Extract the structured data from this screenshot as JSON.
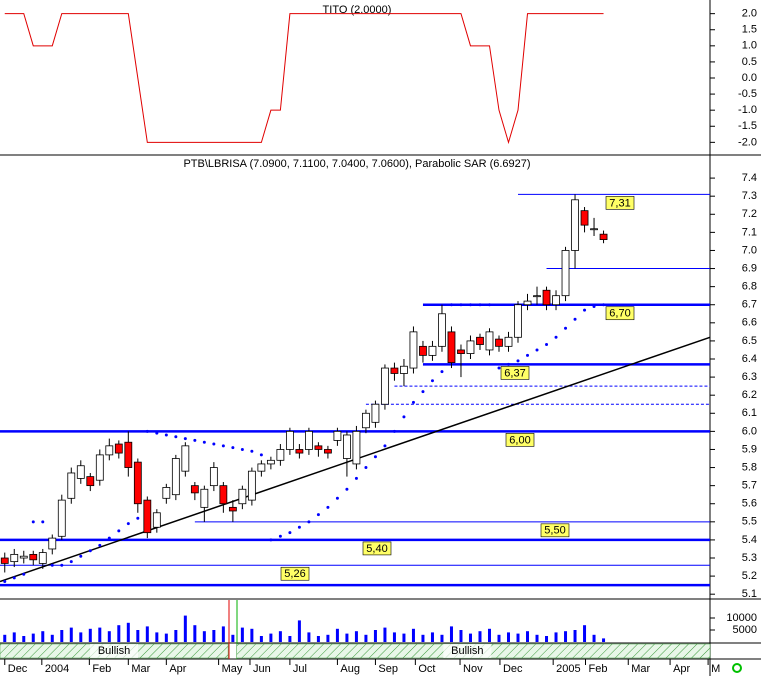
{
  "chart_data": [
    {
      "type": "line",
      "title": "TITO (2.0000)",
      "x": [
        0,
        1,
        2,
        3,
        4,
        5,
        6,
        7,
        8,
        9,
        10,
        11,
        12,
        13,
        14,
        15,
        16,
        17,
        18,
        19,
        20,
        21,
        22,
        23,
        24,
        25,
        26,
        27,
        28,
        29,
        30,
        31,
        32,
        33,
        34,
        35,
        36,
        37,
        38,
        39,
        40,
        41,
        42,
        43,
        44,
        45,
        46,
        47,
        48,
        49,
        50,
        51,
        52,
        53,
        54,
        55,
        56,
        57,
        58,
        59,
        60,
        61,
        62,
        63
      ],
      "series": [
        {
          "name": "TITO",
          "color": "#e00000",
          "values": [
            2,
            2,
            2,
            1,
            1,
            1,
            2,
            2,
            2,
            2,
            2,
            2,
            2,
            2,
            0,
            -2,
            -2,
            -2,
            -2,
            -2,
            -2,
            -2,
            -2,
            -2,
            -2,
            -2,
            -2,
            -2,
            -1,
            -1,
            2,
            2,
            2,
            2,
            2,
            2,
            2,
            2,
            2,
            2,
            2,
            2,
            2,
            2,
            2,
            2,
            2,
            2,
            2,
            1,
            1,
            1,
            -1,
            -2,
            -1,
            2,
            2,
            2,
            2,
            2,
            2,
            2,
            2,
            2
          ]
        }
      ],
      "xlim": [
        -0.5,
        74.2
      ],
      "ylim": [
        -2.3,
        2.3
      ],
      "yticks": [
        {
          "value": 2,
          "label": "2.0"
        },
        {
          "value": 1.5,
          "label": "1.5"
        },
        {
          "value": 1,
          "label": "1.0"
        },
        {
          "value": 0.5,
          "label": "0.5"
        },
        {
          "value": 0,
          "label": "0.0"
        },
        {
          "value": -0.5,
          "label": "-0.5"
        },
        {
          "value": -1,
          "label": "-1.0"
        },
        {
          "value": -1.5,
          "label": "-1.5"
        },
        {
          "value": -2,
          "label": "-2.0"
        }
      ]
    },
    {
      "type": "candlestick",
      "title": "PTB\\LBRISA (7.0900, 7.1100, 7.0400, 7.0600), Parabolic SAR (6.6927)",
      "x": [
        0,
        1,
        2,
        3,
        4,
        5,
        6,
        7,
        8,
        9,
        10,
        11,
        12,
        13,
        14,
        15,
        16,
        17,
        18,
        19,
        20,
        21,
        22,
        23,
        24,
        25,
        26,
        27,
        28,
        29,
        30,
        31,
        32,
        33,
        34,
        35,
        36,
        37,
        38,
        39,
        40,
        41,
        42,
        43,
        44,
        45,
        46,
        47,
        48,
        49,
        50,
        51,
        52,
        53,
        54,
        55,
        56,
        57,
        58,
        59,
        60,
        61,
        62,
        63
      ],
      "open": [
        5.3,
        5.28,
        5.3,
        5.32,
        5.27,
        5.35,
        5.42,
        5.63,
        5.74,
        5.75,
        5.73,
        5.87,
        5.93,
        5.94,
        5.83,
        5.62,
        5.47,
        5.63,
        5.65,
        5.78,
        5.7,
        5.58,
        5.7,
        5.7,
        5.58,
        5.6,
        5.62,
        5.78,
        5.82,
        5.84,
        5.9,
        5.9,
        5.9,
        5.92,
        5.9,
        5.95,
        5.85,
        5.82,
        6.02,
        6.05,
        6.15,
        6.35,
        6.32,
        6.35,
        6.47,
        6.42,
        6.47,
        6.55,
        6.45,
        6.43,
        6.52,
        6.45,
        6.51,
        6.47,
        6.52,
        6.7,
        6.75,
        6.78,
        6.7,
        6.75,
        7.0,
        7.22,
        7.12,
        7.09
      ],
      "high": [
        5.33,
        5.35,
        5.34,
        5.34,
        5.35,
        5.43,
        5.65,
        5.8,
        5.84,
        5.77,
        5.9,
        5.96,
        5.95,
        6.0,
        5.85,
        5.64,
        5.57,
        5.71,
        5.87,
        5.94,
        5.72,
        5.7,
        5.83,
        5.72,
        5.62,
        5.7,
        5.8,
        5.84,
        5.86,
        5.93,
        6.02,
        5.93,
        6.02,
        5.94,
        5.92,
        6.02,
        6.0,
        6.03,
        6.12,
        6.17,
        6.37,
        6.38,
        6.4,
        6.58,
        6.5,
        6.5,
        6.7,
        6.58,
        6.48,
        6.53,
        6.54,
        6.57,
        6.53,
        6.55,
        6.72,
        6.76,
        6.8,
        6.8,
        6.78,
        7.02,
        7.31,
        7.24,
        7.18,
        7.11
      ],
      "low": [
        5.22,
        5.25,
        5.27,
        5.26,
        5.24,
        5.32,
        5.4,
        5.6,
        5.71,
        5.67,
        5.7,
        5.84,
        5.85,
        5.75,
        5.55,
        5.41,
        5.44,
        5.6,
        5.62,
        5.75,
        5.62,
        5.5,
        5.67,
        5.55,
        5.5,
        5.57,
        5.59,
        5.75,
        5.79,
        5.81,
        5.87,
        5.85,
        5.87,
        5.86,
        5.85,
        5.92,
        5.75,
        5.79,
        5.99,
        6.02,
        6.12,
        6.28,
        6.25,
        6.32,
        6.38,
        6.39,
        6.44,
        6.35,
        6.3,
        6.4,
        6.45,
        6.42,
        6.44,
        6.44,
        6.49,
        6.67,
        6.7,
        6.67,
        6.67,
        6.72,
        6.9,
        7.1,
        7.08,
        7.04
      ],
      "close": [
        5.27,
        5.32,
        5.31,
        5.29,
        5.33,
        5.41,
        5.62,
        5.77,
        5.81,
        5.7,
        5.87,
        5.92,
        5.88,
        5.8,
        5.6,
        5.44,
        5.55,
        5.69,
        5.85,
        5.92,
        5.66,
        5.68,
        5.8,
        5.6,
        5.56,
        5.68,
        5.78,
        5.82,
        5.84,
        5.9,
        6.0,
        5.88,
        6.0,
        5.9,
        5.88,
        6.0,
        5.98,
        6.0,
        6.1,
        6.15,
        6.35,
        6.32,
        6.36,
        6.55,
        6.42,
        6.47,
        6.65,
        6.38,
        6.43,
        6.5,
        6.48,
        6.55,
        6.47,
        6.52,
        6.7,
        6.72,
        6.75,
        6.7,
        6.75,
        7.0,
        7.28,
        7.14,
        7.12,
        7.06
      ],
      "sar": [
        5.17,
        5.19,
        5.21,
        5.5,
        5.5,
        5.26,
        5.26,
        5.28,
        5.31,
        5.34,
        5.37,
        5.41,
        5.45,
        5.49,
        5.52,
        6.0,
        5.99,
        5.98,
        5.97,
        5.96,
        5.95,
        5.94,
        5.93,
        5.92,
        5.91,
        5.9,
        5.89,
        5.87,
        5.4,
        5.42,
        5.44,
        5.47,
        5.5,
        5.54,
        5.58,
        5.63,
        5.68,
        5.74,
        5.8,
        5.86,
        5.92,
        6.0,
        6.08,
        6.16,
        6.22,
        6.28,
        6.33,
        6.7,
        6.7,
        6.7,
        6.7,
        6.7,
        6.35,
        6.37,
        6.39,
        6.42,
        6.45,
        6.48,
        6.52,
        6.57,
        6.62,
        6.67,
        6.69,
        6.7
      ],
      "up_color": "#ffffff",
      "down_color": "#ff0000",
      "sar_color": "#0000ff",
      "levels": [
        {
          "value": 7.31,
          "label": "7,31",
          "style": "thin"
        },
        {
          "value": 6.9,
          "style": "thin"
        },
        {
          "value": 6.7,
          "label": "6,70",
          "style": "thick"
        },
        {
          "value": 6.37,
          "label": "6,37",
          "style": "thick"
        },
        {
          "value": 6.25,
          "style": "dashed"
        },
        {
          "value": 6.15,
          "style": "dashed"
        },
        {
          "value": 6,
          "label": "6,00",
          "style": "thick"
        },
        {
          "value": 5.5,
          "label": "5,50",
          "style": "thin"
        },
        {
          "value": 5.4,
          "label": "5,40",
          "style": "thick"
        },
        {
          "value": 5.26,
          "label": "5,26",
          "style": "thin"
        },
        {
          "value": 5.15,
          "style": "thick"
        }
      ],
      "trendline": {
        "x": [
          -0.5,
          74.2
        ],
        "values": [
          5.17,
          6.52
        ]
      },
      "xlim": [
        -0.5,
        74.2
      ],
      "ylim": [
        5.09,
        7.5
      ],
      "yticks": [
        5.1,
        5.2,
        5.3,
        5.4,
        5.5,
        5.6,
        5.7,
        5.8,
        5.9,
        {
          "value": 6,
          "label": "6.0"
        },
        6.1,
        6.2,
        6.3,
        6.4,
        6.5,
        6.6,
        6.7,
        6.8,
        6.9,
        {
          "value": 7,
          "label": "7.0"
        },
        7.1,
        7.2,
        7.3,
        7.4
      ]
    },
    {
      "type": "bar",
      "x": [
        0,
        1,
        2,
        3,
        4,
        5,
        6,
        7,
        8,
        9,
        10,
        11,
        12,
        13,
        14,
        15,
        16,
        17,
        18,
        19,
        20,
        21,
        22,
        23,
        24,
        25,
        26,
        27,
        28,
        29,
        30,
        31,
        32,
        33,
        34,
        35,
        36,
        37,
        38,
        39,
        40,
        41,
        42,
        43,
        44,
        45,
        46,
        47,
        48,
        49,
        50,
        51,
        52,
        53,
        54,
        55,
        56,
        57,
        58,
        59,
        60,
        61,
        62,
        63
      ],
      "values": [
        3000,
        4000,
        2500,
        3500,
        4500,
        3000,
        5000,
        6000,
        4000,
        5500,
        6000,
        4500,
        7000,
        8000,
        5000,
        6500,
        4000,
        3500,
        5000,
        11000,
        7000,
        4500,
        5000,
        6500,
        3000,
        6000,
        5500,
        2500,
        3500,
        4500,
        2500,
        9000,
        4000,
        2500,
        3000,
        5500,
        3500,
        4500,
        3000,
        5000,
        6000,
        4000,
        3500,
        5500,
        3000,
        4000,
        3000,
        6500,
        5000,
        3500,
        4500,
        5500,
        3000,
        4000,
        3500,
        4500,
        3000,
        2500,
        4000,
        4500,
        5000,
        7000,
        3000,
        1500
      ],
      "color": "#0000ff",
      "xlim": [
        -0.5,
        74.2
      ],
      "ylim": [
        0,
        15000
      ],
      "yticks": [
        10000,
        5000
      ],
      "regimes": [
        {
          "label": "Bullish",
          "start": -0.5,
          "end": 23.5
        },
        {
          "label": "Bullish",
          "start": 24.4,
          "end": 74.2
        }
      ],
      "xticks": [
        {
          "value": 0,
          "label": "Dec"
        },
        {
          "value": 3.9,
          "label": "2004"
        },
        {
          "value": 8.9,
          "label": "Feb"
        },
        {
          "value": 13,
          "label": "Mar"
        },
        {
          "value": 17,
          "label": "Apr"
        },
        {
          "value": 22.5,
          "label": "May"
        },
        {
          "value": 25.8,
          "label": "Jun"
        },
        {
          "value": 30,
          "label": "Jul"
        },
        {
          "value": 35,
          "label": "Aug"
        },
        {
          "value": 39,
          "label": "Sep"
        },
        {
          "value": 43.2,
          "label": "Oct"
        },
        {
          "value": 47.9,
          "label": "Nov"
        },
        {
          "value": 52.1,
          "label": "Dec"
        },
        {
          "value": 57.7,
          "label": "2005"
        },
        {
          "value": 61.1,
          "label": "Feb"
        },
        {
          "value": 65.6,
          "label": "Mar"
        },
        {
          "value": 70,
          "label": "Apr"
        },
        {
          "value": 74,
          "label": "M"
        }
      ]
    }
  ]
}
